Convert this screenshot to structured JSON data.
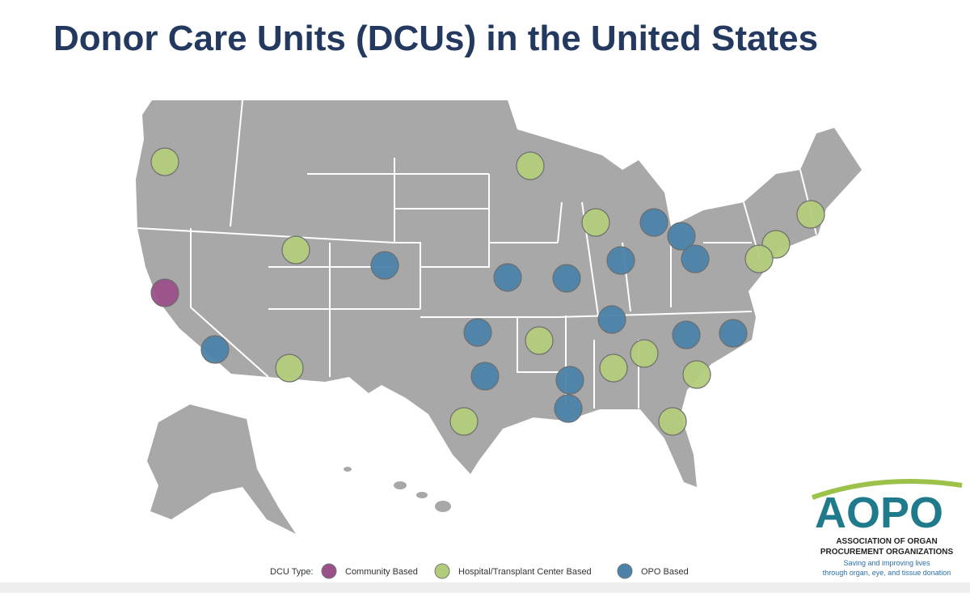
{
  "header": {
    "title": "Donor Care Units (DCUs) in the United States"
  },
  "legend": {
    "label": "DCU Type:",
    "items": [
      {
        "name": "Community Based",
        "color": "#9a5089"
      },
      {
        "name": "Hospital/Transplant Center Based",
        "color": "#b3cc7c"
      },
      {
        "name": "OPO Based",
        "color": "#4b82a9"
      }
    ]
  },
  "logo": {
    "mark": "AOPO",
    "name_lines": [
      "ASSOCIATION OF ORGAN",
      "PROCUREMENT ORGANIZATIONS"
    ],
    "tagline_lines": [
      "Saving and improving lives",
      "through organ, eye, and tissue donation"
    ]
  }
}
